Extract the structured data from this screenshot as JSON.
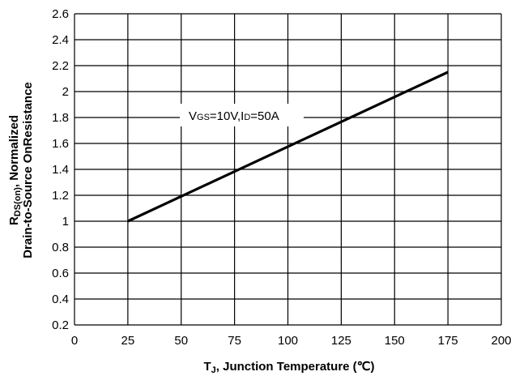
{
  "chart_data": {
    "type": "line",
    "xlabel_main": "T",
    "xlabel_sub": "J",
    "xlabel_rest": ", Junction Temperature (℃)",
    "ylabel_line1_main": "R",
    "ylabel_line1_sub": "DS(on)",
    "ylabel_line1_rest": ", Normalized",
    "ylabel_line2": "Drain-to-Source OnResistance",
    "annotation": {
      "v": "V",
      "gs": "GS",
      "mid": "=10V,I",
      "d": "D",
      "end": "=50A"
    },
    "xlim": [
      0,
      200
    ],
    "ylim": [
      0.2,
      2.6
    ],
    "x_ticks": [
      "0",
      "25",
      "50",
      "75",
      "100",
      "125",
      "150",
      "175",
      "200"
    ],
    "y_ticks": [
      "0.2",
      "0.4",
      "0.6",
      "0.8",
      "1",
      "1.2",
      "1.4",
      "1.6",
      "1.8",
      "2",
      "2.2",
      "2.4",
      "2.6"
    ],
    "grid": true,
    "series": [
      {
        "x": [
          25,
          175
        ],
        "y": [
          1.0,
          2.15
        ],
        "color": "#000000"
      }
    ]
  }
}
